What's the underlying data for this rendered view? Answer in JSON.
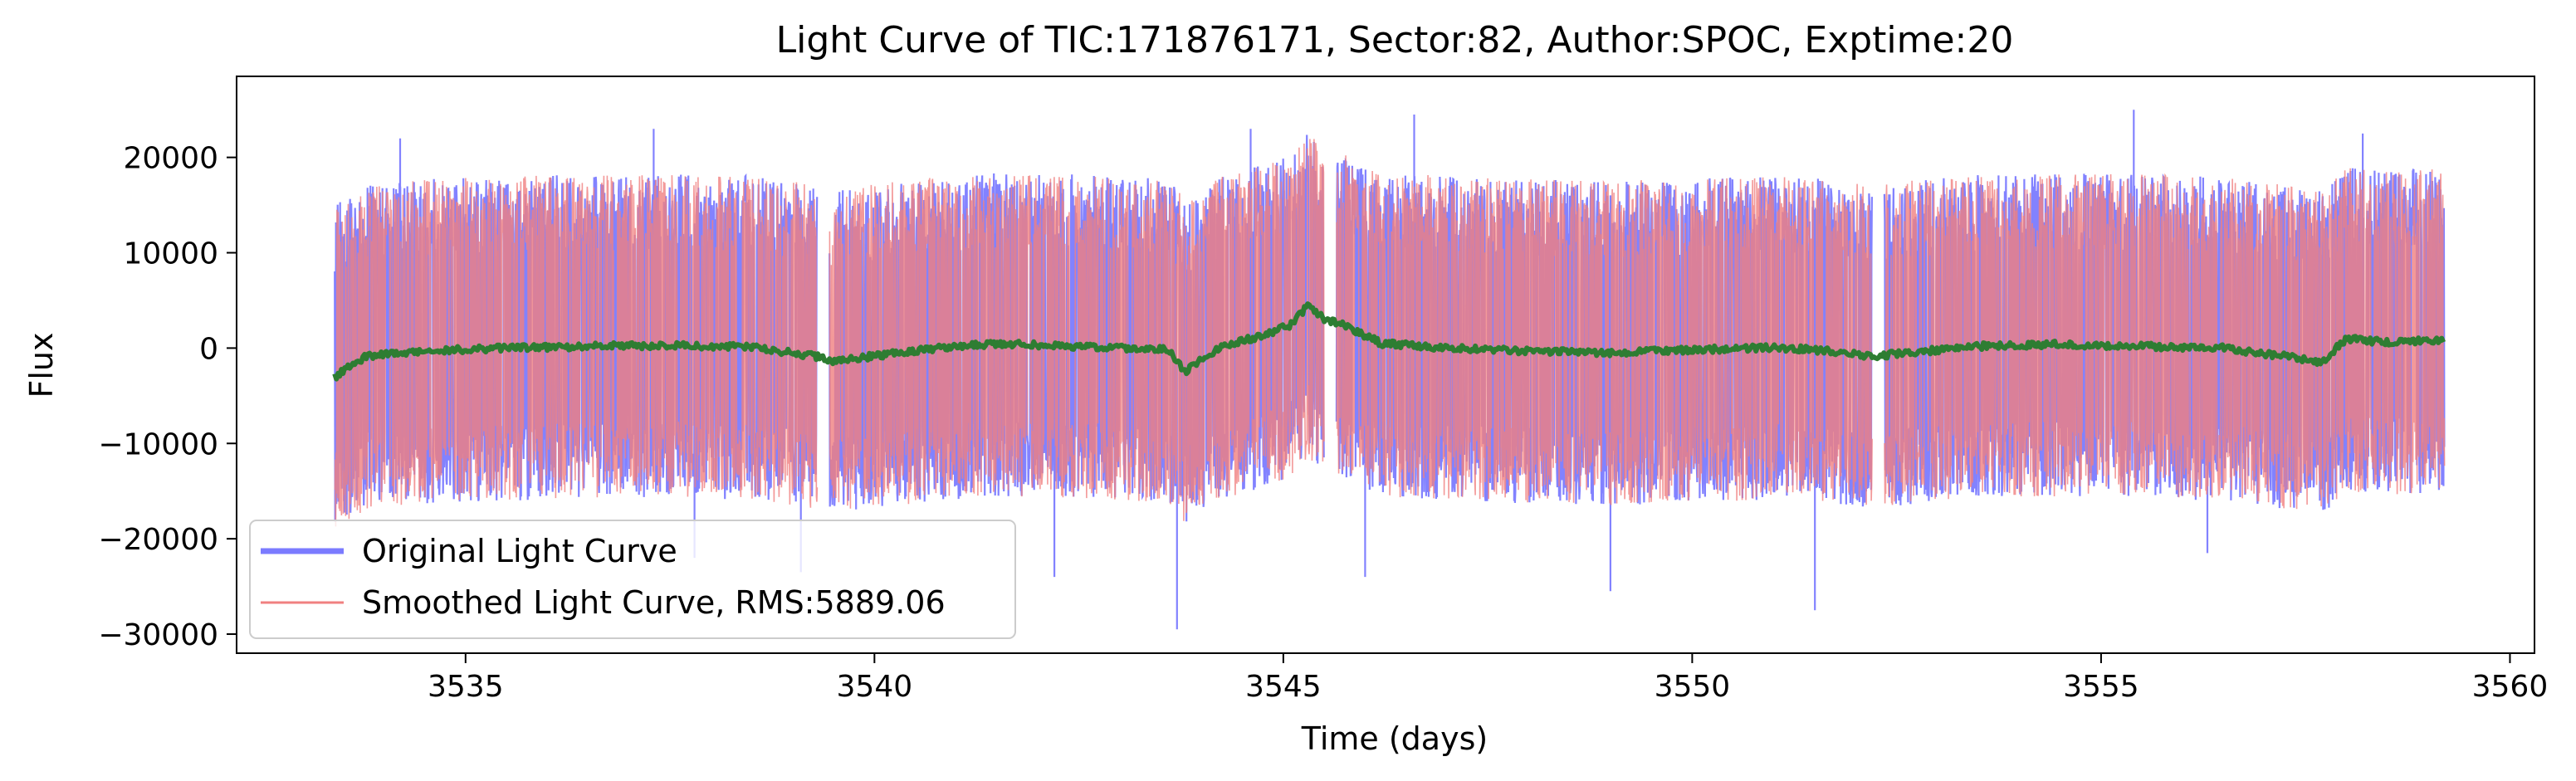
{
  "chart_data": {
    "type": "line",
    "title": "Light Curve of TIC:171876171, Sector:82, Author:SPOC, Exptime:20",
    "xlabel": "Time (days)",
    "ylabel": "Flux",
    "xlim": [
      3532.2,
      3560.3
    ],
    "ylim": [
      -32000,
      28500
    ],
    "xticks": [
      3535,
      3540,
      3545,
      3550,
      3555,
      3560
    ],
    "yticks": [
      20000,
      10000,
      0,
      -10000,
      -20000,
      -30000
    ],
    "xtick_labels": [
      "3535",
      "3540",
      "3545",
      "3550",
      "3555",
      "3560"
    ],
    "ytick_labels": [
      "20000",
      "10000",
      "0",
      "−10000",
      "−20000",
      "−30000"
    ],
    "grid": false,
    "legend_position": "lower-left",
    "segments": [
      [
        3533.4,
        3539.3
      ],
      [
        3539.45,
        3545.5
      ],
      [
        3545.65,
        3552.2
      ],
      [
        3552.35,
        3559.2
      ]
    ],
    "noise_envelope": {
      "upper": [
        10000,
        18000
      ],
      "lower": [
        -8000,
        -16000
      ]
    },
    "series": [
      {
        "name": "Original Light Curve",
        "color": "#7b7bff",
        "style": "noisy flux, spikes to about 25000 and -29500",
        "spikes": [
          [
            3534.2,
            22000
          ],
          [
            3537.3,
            23000
          ],
          [
            3544.6,
            23000
          ],
          [
            3546.6,
            24500
          ],
          [
            3555.4,
            25000
          ],
          [
            3558.2,
            22500
          ],
          [
            3543.7,
            -29500
          ],
          [
            3551.5,
            -27500
          ],
          [
            3549.0,
            -25500
          ],
          [
            3546.0,
            -24000
          ],
          [
            3539.1,
            -23500
          ],
          [
            3542.2,
            -24000
          ],
          [
            3537.8,
            -22000
          ],
          [
            3556.3,
            -21500
          ]
        ]
      },
      {
        "name": "Smoothed Light Curve, RMS:5889.06",
        "color": "#f08080",
        "style": "overlaid noisy flux"
      },
      {
        "name": "",
        "color": "#2e7d32",
        "style": "running mean",
        "x": [
          3533.4,
          3533.8,
          3534.5,
          3535.5,
          3536.5,
          3537.5,
          3538.5,
          3539.0,
          3539.3,
          3539.5,
          3540.0,
          3540.8,
          3541.5,
          3542.5,
          3543.0,
          3543.6,
          3543.8,
          3544.2,
          3544.8,
          3545.1,
          3545.3,
          3545.5,
          3545.7,
          3546.2,
          3547.0,
          3548.0,
          3549.0,
          3550.0,
          3551.0,
          3551.8,
          3552.2,
          3552.5,
          3553.5,
          3554.5,
          3555.5,
          3556.5,
          3557.2,
          3557.7,
          3558.0,
          3558.5,
          3559.2
        ],
        "values": [
          -3000,
          -800,
          -300,
          0,
          200,
          300,
          100,
          -500,
          -900,
          -1500,
          -800,
          0,
          500,
          200,
          0,
          -200,
          -2500,
          0,
          1500,
          2500,
          4500,
          3000,
          2500,
          500,
          0,
          -300,
          -500,
          -200,
          100,
          -400,
          -900,
          -600,
          200,
          400,
          200,
          0,
          -800,
          -1500,
          1000,
          600,
          900
        ]
      }
    ]
  }
}
